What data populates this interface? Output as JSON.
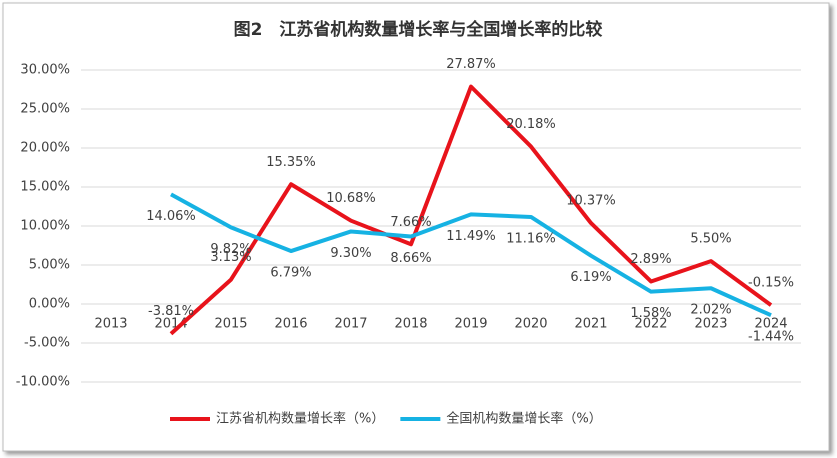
{
  "chart_data": {
    "type": "line",
    "title": "图2　江苏省机构数量增长率与全国增长率的比较",
    "categories": [
      "2013",
      "2014",
      "2015",
      "2016",
      "2017",
      "2018",
      "2019",
      "2020",
      "2021",
      "2022",
      "2023",
      "2024"
    ],
    "series": [
      {
        "name": "江苏省机构数量增长率（%）",
        "color": "#e8131b",
        "values": [
          null,
          -3.81,
          3.13,
          15.35,
          10.68,
          7.66,
          27.87,
          20.18,
          10.37,
          2.89,
          5.5,
          -0.15
        ],
        "value_labels": [
          null,
          "-3.81%",
          "3.13%",
          "15.35%",
          "10.68%",
          "7.66%",
          "27.87%",
          "20.18%",
          "10.37%",
          "2.89%",
          "5.50%",
          "-0.15%"
        ]
      },
      {
        "name": "全国机构数量增长率（%）",
        "color": "#16b2e3",
        "values": [
          null,
          14.06,
          9.82,
          6.79,
          9.3,
          8.66,
          11.49,
          11.16,
          6.19,
          1.58,
          2.02,
          -1.44
        ],
        "value_labels": [
          null,
          "14.06%",
          "9.82%",
          "6.79%",
          "9.30%",
          "8.66%",
          "11.49%",
          "11.16%",
          "6.19%",
          "1.58%",
          "2.02%",
          "-1.44%"
        ]
      }
    ],
    "ylim": [
      -10,
      30
    ],
    "yticks": [
      {
        "value": -10,
        "label": "-10.00%"
      },
      {
        "value": -5,
        "label": "-5.00%"
      },
      {
        "value": 0,
        "label": "0.00%"
      },
      {
        "value": 5,
        "label": "5.00%"
      },
      {
        "value": 10,
        "label": "10.00%"
      },
      {
        "value": 15,
        "label": "15.00%"
      },
      {
        "value": 20,
        "label": "20.00%"
      },
      {
        "value": 25,
        "label": "25.00%"
      },
      {
        "value": 30,
        "label": "30.00%"
      }
    ],
    "grid": true,
    "legend": "bottom"
  }
}
